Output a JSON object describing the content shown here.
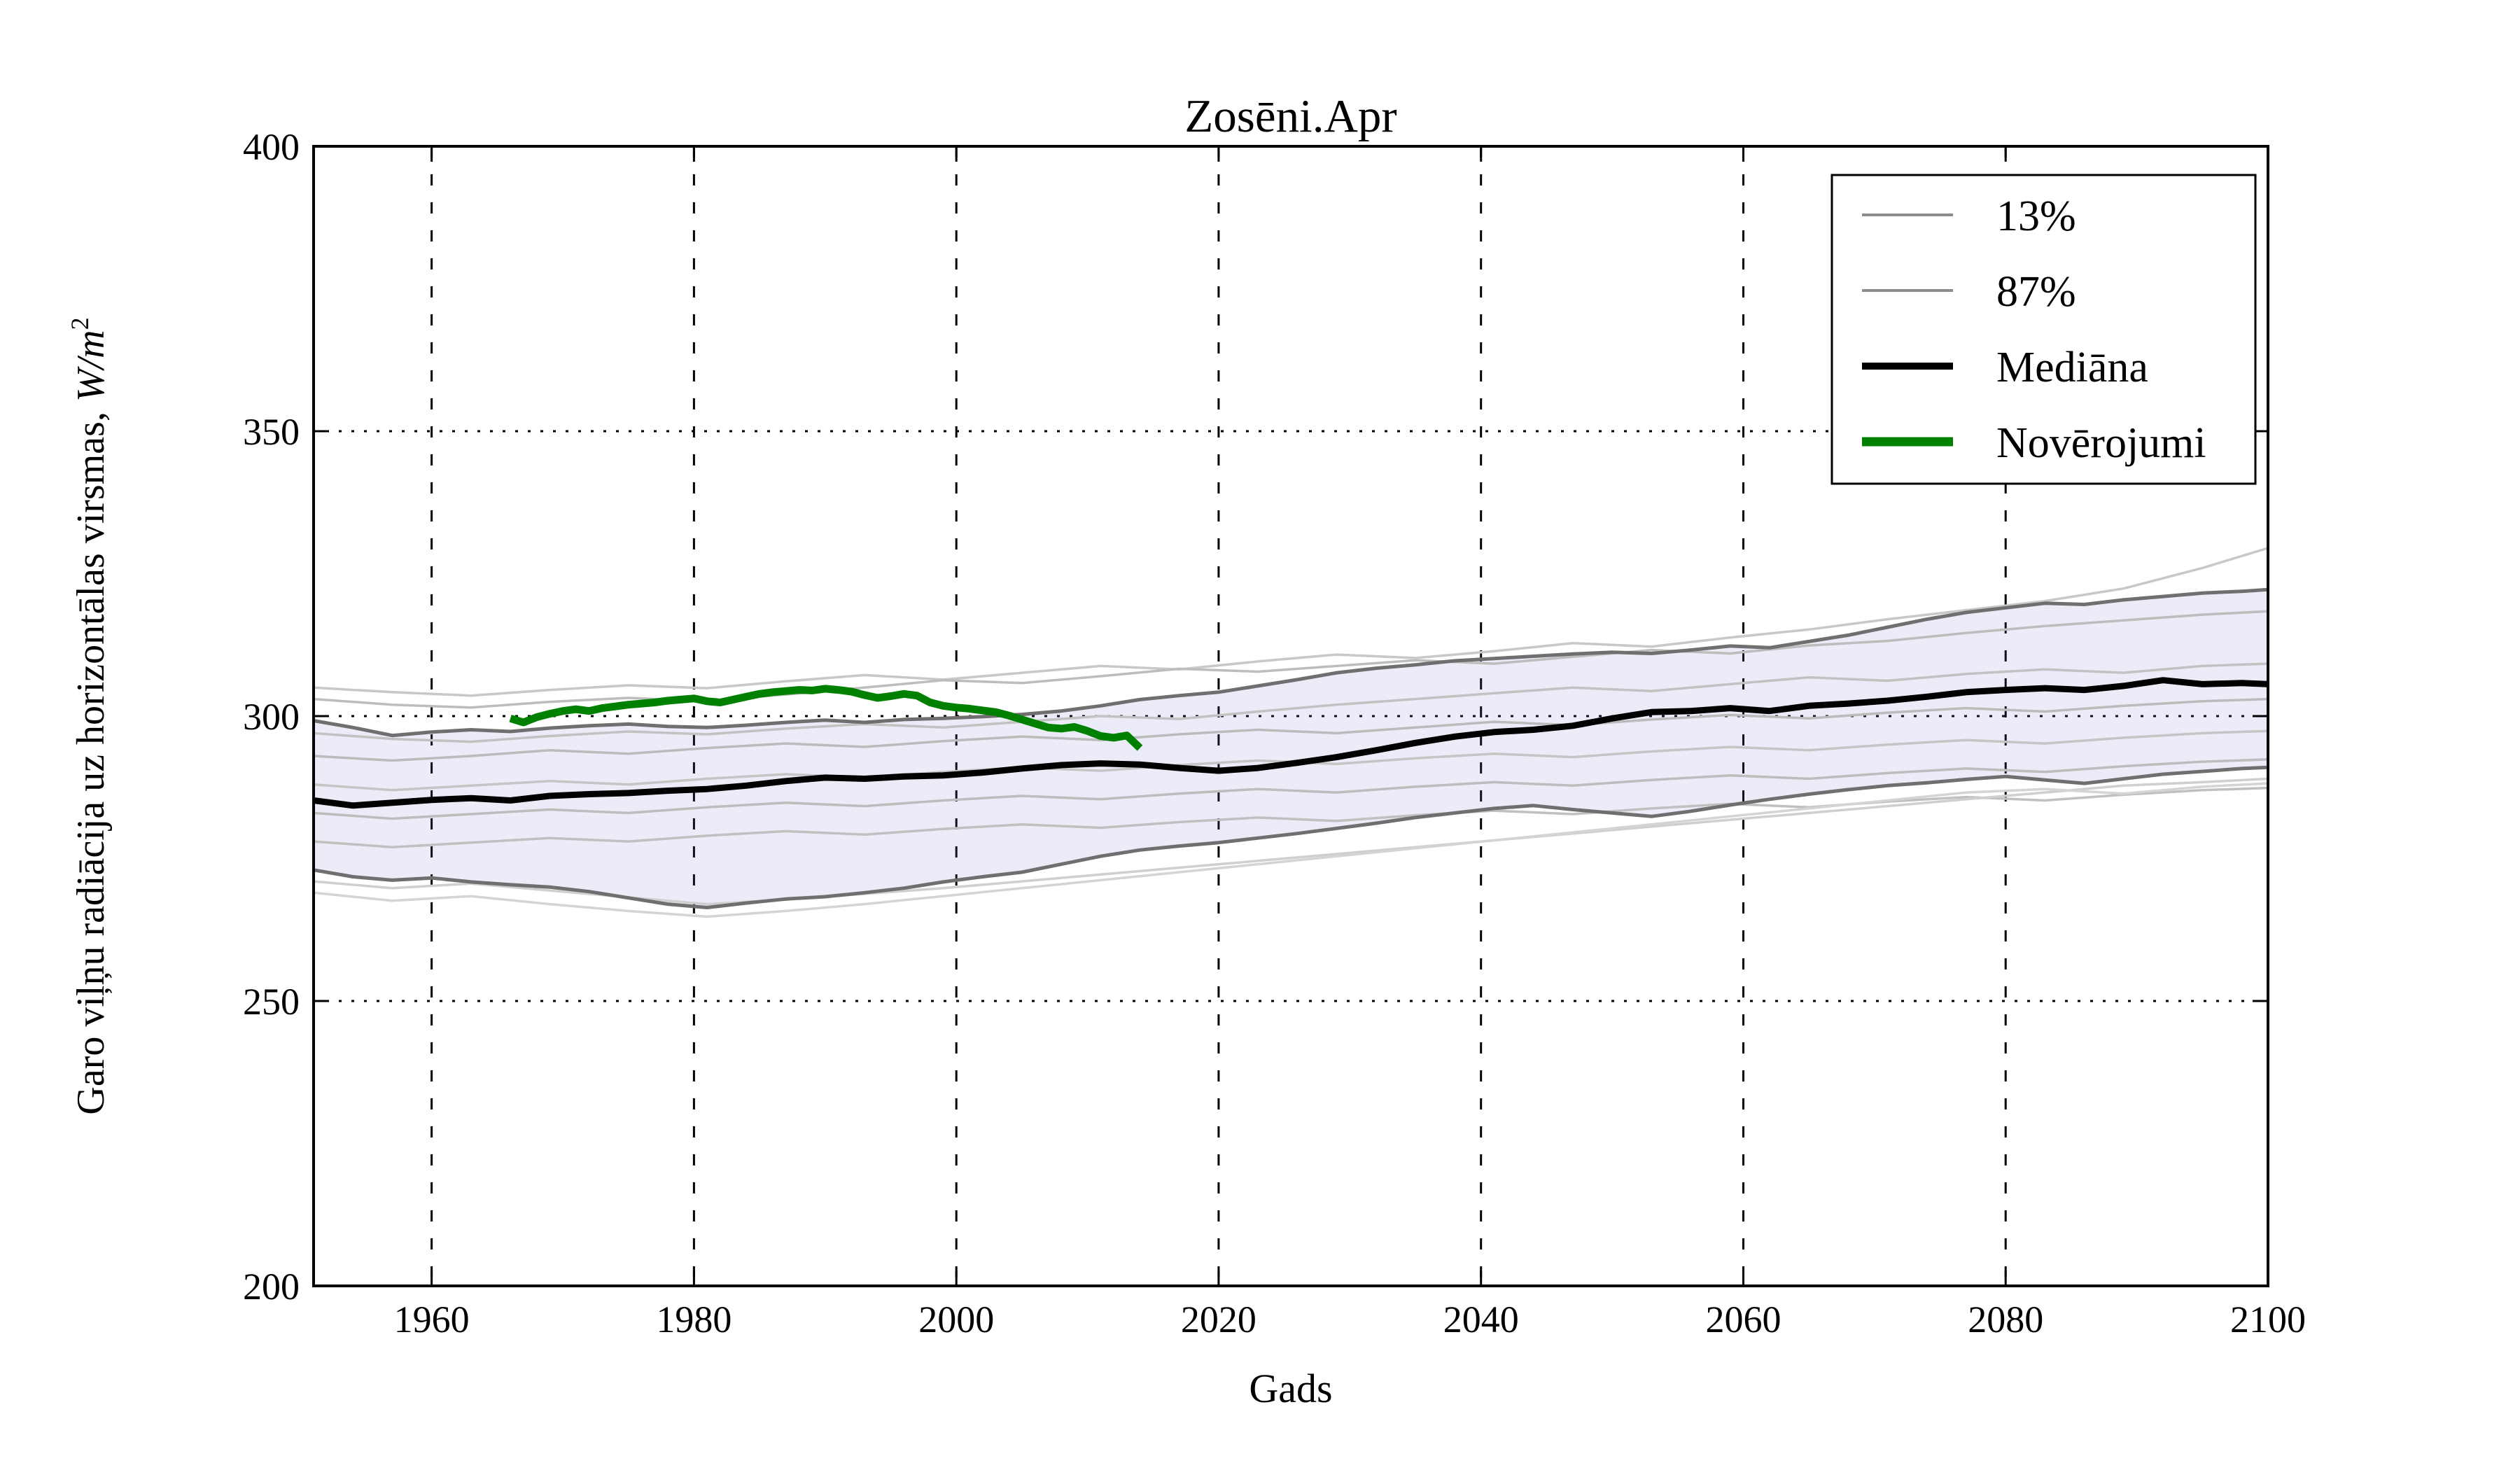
{
  "figure": {
    "background": "#ffffff"
  },
  "chart_data": {
    "type": "line",
    "title": "Zosēni.Apr",
    "xlabel": "Gads",
    "ylabel_prefix": "Garo viļņu radiācija uz horizontālas virsmas, ",
    "ylabel_unit": "W/m",
    "ylabel_sup": "2",
    "xlim": [
      1951,
      2100
    ],
    "ylim": [
      200,
      400
    ],
    "xticks": [
      1960,
      1980,
      2000,
      2020,
      2040,
      2060,
      2080,
      2100
    ],
    "yticks": [
      200,
      250,
      300,
      350,
      400
    ],
    "grid": true,
    "legend": {
      "position": "upper right",
      "entries": [
        {
          "label": "13%",
          "color": "#8c8c8c",
          "line_width": 4
        },
        {
          "label": "87%",
          "color": "#8c8c8c",
          "line_width": 4
        },
        {
          "label": "Mediāna",
          "color": "#000000",
          "line_width": 10
        },
        {
          "label": "Novērojumi",
          "color": "#008000",
          "line_width": 13
        }
      ]
    },
    "band": {
      "name": "13-87% percentile band",
      "fill": "#7878d2",
      "fill_opacity": 0.14,
      "edge_color": "#6f6f6f",
      "edge_width": 5,
      "years": [
        1951,
        1954,
        1957,
        1960,
        1963,
        1966,
        1969,
        1972,
        1975,
        1978,
        1981,
        1984,
        1987,
        1990,
        1993,
        1996,
        1999,
        2002,
        2005,
        2008,
        2011,
        2014,
        2017,
        2020,
        2023,
        2026,
        2029,
        2032,
        2035,
        2038,
        2041,
        2044,
        2047,
        2050,
        2053,
        2056,
        2059,
        2062,
        2065,
        2068,
        2071,
        2074,
        2077,
        2080,
        2083,
        2086,
        2089,
        2092,
        2095,
        2098,
        2100
      ],
      "upper_87pct": [
        299.2,
        298.0,
        296.6,
        297.2,
        297.6,
        297.3,
        297.9,
        298.3,
        298.6,
        298.2,
        298.0,
        298.4,
        298.9,
        299.3,
        298.9,
        299.4,
        299.6,
        299.9,
        300.3,
        300.9,
        301.8,
        302.9,
        303.6,
        304.2,
        305.3,
        306.4,
        307.6,
        308.4,
        309.0,
        309.7,
        310.1,
        310.5,
        310.9,
        311.2,
        311.0,
        311.6,
        312.3,
        312.0,
        313.1,
        314.2,
        315.6,
        317.0,
        318.2,
        319.0,
        319.8,
        319.6,
        320.4,
        321.0,
        321.6,
        321.9,
        322.2
      ],
      "lower_13pct": [
        273.0,
        271.8,
        271.2,
        271.6,
        270.9,
        270.4,
        270.0,
        269.2,
        268.1,
        267.0,
        266.4,
        267.2,
        267.9,
        268.3,
        269.0,
        269.8,
        270.9,
        271.8,
        272.6,
        274.0,
        275.4,
        276.5,
        277.2,
        277.8,
        278.6,
        279.4,
        280.3,
        281.2,
        282.2,
        283.0,
        283.8,
        284.3,
        283.6,
        283.0,
        282.4,
        283.3,
        284.4,
        285.4,
        286.3,
        287.1,
        287.8,
        288.3,
        288.9,
        289.4,
        288.8,
        288.2,
        289.0,
        289.8,
        290.3,
        290.8,
        291.0
      ]
    },
    "median": {
      "label": "Mediāna",
      "color": "#000000",
      "width": 9,
      "years": [
        1951,
        1954,
        1957,
        1960,
        1963,
        1966,
        1969,
        1972,
        1975,
        1978,
        1981,
        1984,
        1987,
        1990,
        1993,
        1996,
        1999,
        2002,
        2005,
        2008,
        2011,
        2014,
        2017,
        2020,
        2023,
        2026,
        2029,
        2032,
        2035,
        2038,
        2041,
        2044,
        2047,
        2050,
        2053,
        2056,
        2059,
        2062,
        2065,
        2068,
        2071,
        2074,
        2077,
        2080,
        2083,
        2086,
        2089,
        2092,
        2095,
        2098,
        2100
      ],
      "values": [
        285.2,
        284.3,
        284.8,
        285.3,
        285.6,
        285.2,
        286.0,
        286.3,
        286.5,
        286.9,
        287.2,
        287.8,
        288.6,
        289.2,
        289.0,
        289.4,
        289.6,
        290.1,
        290.8,
        291.4,
        291.7,
        291.5,
        290.9,
        290.4,
        290.9,
        291.8,
        292.8,
        294.0,
        295.3,
        296.4,
        297.2,
        297.6,
        298.3,
        299.6,
        300.7,
        300.9,
        301.4,
        300.9,
        301.8,
        302.2,
        302.7,
        303.4,
        304.2,
        304.6,
        304.9,
        304.6,
        305.3,
        306.3,
        305.6,
        305.8,
        305.6
      ]
    },
    "observations": {
      "label": "Novērojumi",
      "color": "#008000",
      "width": 11,
      "years": [
        1966,
        1967,
        1968,
        1969,
        1970,
        1971,
        1972,
        1973,
        1974,
        1975,
        1976,
        1977,
        1978,
        1979,
        1980,
        1981,
        1982,
        1983,
        1984,
        1985,
        1986,
        1987,
        1988,
        1989,
        1990,
        1991,
        1992,
        1993,
        1994,
        1995,
        1996,
        1997,
        1998,
        1999,
        2000,
        2001,
        2002,
        2003,
        2004,
        2005,
        2006,
        2007,
        2008,
        2009,
        2010,
        2011,
        2012,
        2013,
        2014
      ],
      "values": [
        299.6,
        298.9,
        299.8,
        300.4,
        300.9,
        301.2,
        300.9,
        301.4,
        301.7,
        302.0,
        302.2,
        302.4,
        302.7,
        302.9,
        303.1,
        302.6,
        302.4,
        302.9,
        303.4,
        303.9,
        304.2,
        304.4,
        304.6,
        304.5,
        304.8,
        304.6,
        304.3,
        303.7,
        303.2,
        303.5,
        303.9,
        303.6,
        302.4,
        301.8,
        301.5,
        301.3,
        301.0,
        300.7,
        300.1,
        299.4,
        298.7,
        298.0,
        297.8,
        298.1,
        297.4,
        296.5,
        296.2,
        296.6,
        294.4
      ]
    },
    "ensemble": {
      "name": "individual model runs",
      "width": 3.5,
      "years": [
        1951,
        1957,
        1963,
        1969,
        1975,
        1981,
        1987,
        1993,
        1999,
        2005,
        2011,
        2017,
        2023,
        2029,
        2035,
        2041,
        2047,
        2053,
        2059,
        2065,
        2071,
        2077,
        2083,
        2089,
        2095,
        2100
      ],
      "series": [
        {
          "color": "#c8c8c8",
          "values": [
            305.0,
            304.2,
            303.6,
            304.6,
            305.4,
            304.9,
            306.1,
            307.2,
            306.4,
            307.6,
            308.8,
            308.2,
            309.6,
            310.8,
            310.2,
            311.4,
            312.8,
            312.2,
            313.8,
            315.2,
            317.0,
            318.6,
            320.2,
            322.4,
            326.0,
            329.5
          ]
        },
        {
          "color": "#bdbdbd",
          "values": [
            303.0,
            302.0,
            301.5,
            302.5,
            303.2,
            302.6,
            303.8,
            305.0,
            306.3,
            305.8,
            307.0,
            308.3,
            307.8,
            308.8,
            309.8,
            309.2,
            310.4,
            311.6,
            311.0,
            312.4,
            313.2,
            314.6,
            315.8,
            316.8,
            317.8,
            318.4
          ]
        },
        {
          "color": "#c2c2c2",
          "values": [
            297.0,
            296.0,
            295.5,
            296.5,
            297.3,
            296.8,
            297.8,
            298.6,
            298.0,
            299.0,
            300.0,
            299.5,
            300.8,
            302.0,
            303.0,
            304.0,
            305.0,
            304.4,
            305.6,
            306.8,
            306.2,
            307.4,
            308.2,
            307.6,
            308.8,
            309.2
          ]
        },
        {
          "color": "#bbbbbb",
          "values": [
            293.0,
            292.2,
            293.0,
            294.0,
            293.4,
            294.4,
            295.2,
            294.6,
            295.6,
            296.4,
            295.8,
            296.8,
            297.6,
            297.0,
            298.0,
            299.0,
            298.4,
            299.4,
            300.2,
            299.6,
            300.6,
            301.4,
            300.8,
            301.8,
            302.6,
            303.0
          ]
        },
        {
          "color": "#c5c5c5",
          "values": [
            288.0,
            287.0,
            287.8,
            288.6,
            288.0,
            289.0,
            289.8,
            289.2,
            290.2,
            291.0,
            290.4,
            291.4,
            292.2,
            291.6,
            292.6,
            293.4,
            292.8,
            293.8,
            294.6,
            294.0,
            295.0,
            295.8,
            295.2,
            296.2,
            297.0,
            297.4
          ]
        },
        {
          "color": "#bdbdbd",
          "values": [
            283.0,
            282.0,
            282.8,
            283.6,
            283.0,
            284.0,
            284.8,
            284.2,
            285.2,
            286.0,
            285.4,
            286.4,
            287.2,
            286.6,
            287.6,
            288.4,
            287.8,
            288.8,
            289.6,
            289.0,
            290.0,
            290.8,
            290.2,
            291.2,
            292.0,
            292.4
          ]
        },
        {
          "color": "#c0c0c0",
          "values": [
            278.0,
            277.0,
            277.8,
            278.6,
            278.0,
            279.0,
            279.8,
            279.2,
            280.2,
            281.0,
            280.4,
            281.4,
            282.2,
            281.6,
            282.6,
            283.4,
            282.8,
            283.8,
            284.6,
            284.0,
            285.0,
            285.8,
            285.2,
            286.2,
            287.0,
            287.4
          ]
        },
        {
          "color": "#cfcfcf",
          "values": [
            271.0,
            269.8,
            270.6,
            269.4,
            268.2,
            267.0,
            267.8,
            268.8,
            269.8,
            271.0,
            272.2,
            273.4,
            274.6,
            275.8,
            277.0,
            278.2,
            279.4,
            280.6,
            281.8,
            283.0,
            284.2,
            285.4,
            286.6,
            287.8,
            288.4,
            289.0
          ]
        },
        {
          "color": "#d4d4d4",
          "values": [
            269.0,
            267.6,
            268.4,
            267.0,
            265.8,
            264.8,
            265.8,
            267.0,
            268.4,
            269.8,
            271.2,
            272.6,
            274.0,
            275.4,
            276.8,
            278.2,
            279.6,
            281.0,
            282.4,
            283.8,
            285.2,
            286.6,
            287.2,
            286.4,
            287.6,
            288.2
          ]
        }
      ]
    }
  }
}
